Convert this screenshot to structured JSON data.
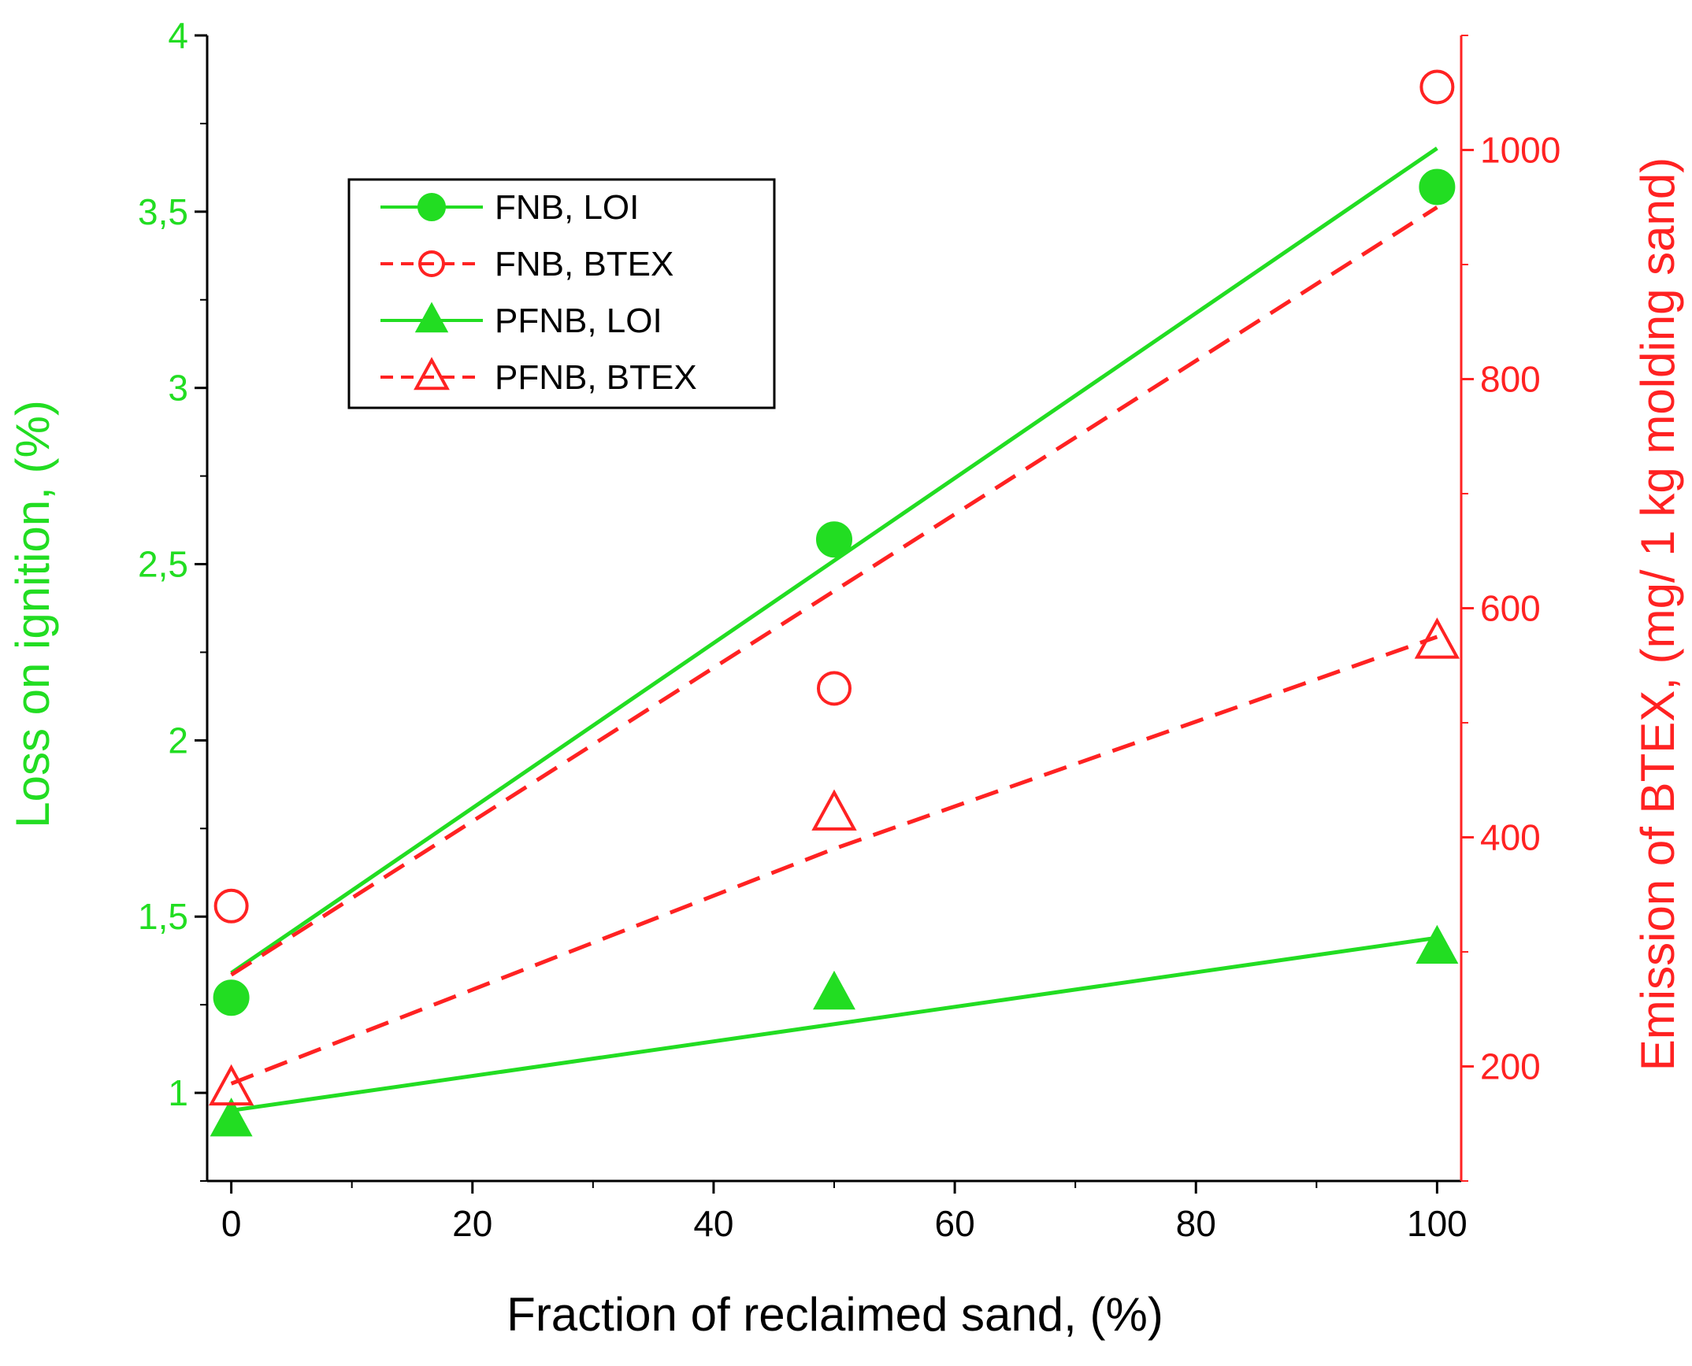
{
  "chart_data": {
    "type": "scatter",
    "title": "",
    "xlabel": "Fraction of reclaimed sand, (%)",
    "ylabel_left": "Loss on ignition, (%)",
    "ylabel_right": "Emission of BTEX, (mg/ 1 kg molding sand)",
    "xlim": [
      -2,
      102
    ],
    "ylim_left": [
      0.75,
      4.0
    ],
    "ylim_right": [
      100,
      1100
    ],
    "x_ticks": [
      "0",
      "20",
      "40",
      "60",
      "80",
      "100"
    ],
    "x_tick_values": [
      0,
      20,
      40,
      60,
      80,
      100
    ],
    "y_left_ticks": [
      "1",
      "1,5",
      "2",
      "2,5",
      "3",
      "3,5",
      "4"
    ],
    "y_left_tick_values": [
      1.0,
      1.5,
      2.0,
      2.5,
      3.0,
      3.5,
      4.0
    ],
    "y_right_ticks": [
      "200",
      "400",
      "600",
      "800",
      "1000"
    ],
    "y_right_tick_values": [
      200,
      400,
      600,
      800,
      1000
    ],
    "colors": {
      "loi": "#22dd22",
      "btex": "#ff2222",
      "axis": "#000000"
    },
    "legend_position": "top-left",
    "series": [
      {
        "name": "FNB, LOI",
        "axis": "left",
        "marker": "filled-circle",
        "line": "solid",
        "x": [
          0,
          50,
          100
        ],
        "y": [
          1.27,
          2.57,
          3.57
        ],
        "fit": [
          [
            0,
            1.34
          ],
          [
            100,
            3.68
          ]
        ]
      },
      {
        "name": "FNB, BTEX",
        "axis": "right",
        "marker": "open-circle",
        "line": "dashed",
        "x": [
          0,
          50,
          100
        ],
        "y": [
          340,
          530,
          1055
        ],
        "fit": [
          [
            0,
            280
          ],
          [
            100,
            950
          ]
        ]
      },
      {
        "name": "PFNB, LOI",
        "axis": "left",
        "marker": "filled-triangle",
        "line": "solid",
        "x": [
          0,
          50,
          100
        ],
        "y": [
          0.92,
          1.28,
          1.41
        ],
        "fit": [
          [
            0,
            0.95
          ],
          [
            100,
            1.44
          ]
        ]
      },
      {
        "name": "PFNB, BTEX",
        "axis": "right",
        "marker": "open-triangle",
        "line": "dashed",
        "x": [
          0,
          50,
          100
        ],
        "y": [
          180,
          420,
          570
        ],
        "fit": [
          [
            0,
            185
          ],
          [
            50,
            390
          ],
          [
            100,
            575
          ]
        ]
      }
    ]
  }
}
